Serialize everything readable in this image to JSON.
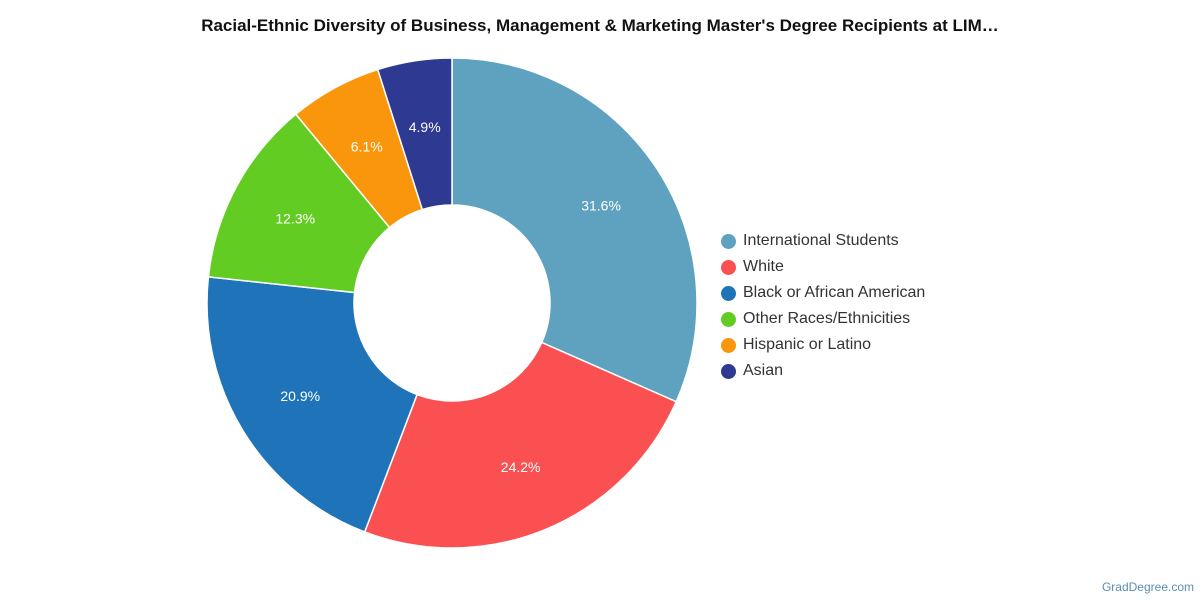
{
  "chart_data": {
    "type": "pie",
    "donut": true,
    "title": "Racial-Ethnic Diversity of Business, Management & Marketing Master's Degree Recipients at LIM…",
    "legend_position": "right",
    "series": [
      {
        "name": "International Students",
        "value": 31.6,
        "label": "31.6%",
        "color": "#5ea2bf"
      },
      {
        "name": "White",
        "value": 24.2,
        "label": "24.2%",
        "color": "#fb5052"
      },
      {
        "name": "Black or African American",
        "value": 20.9,
        "label": "20.9%",
        "color": "#1f73b9"
      },
      {
        "name": "Other Races/Ethnicities",
        "value": 12.3,
        "label": "12.3%",
        "color": "#63cc23"
      },
      {
        "name": "Hispanic or Latino",
        "value": 6.1,
        "label": "6.1%",
        "color": "#f9960b"
      },
      {
        "name": "Asian",
        "value": 4.9,
        "label": "4.9%",
        "color": "#2e3991"
      }
    ]
  },
  "credit": "GradDegree.com"
}
